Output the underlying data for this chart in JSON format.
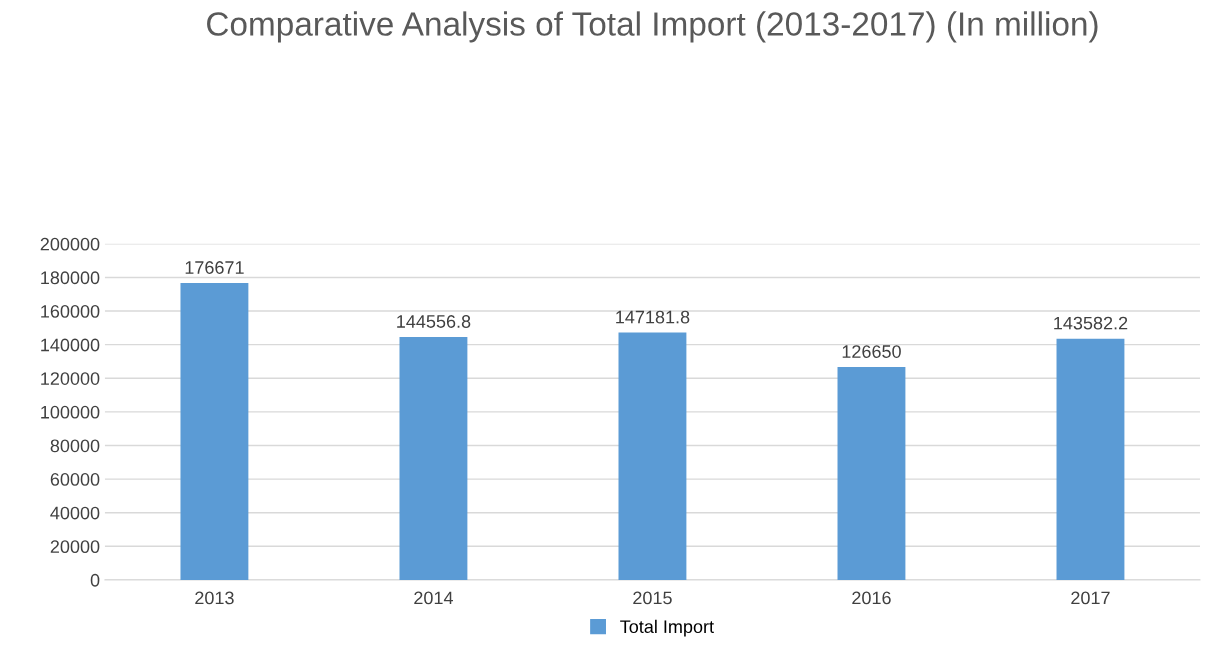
{
  "chart_data": {
    "type": "bar",
    "title": "Comparative Analysis of Total Import (2013-2017) (In million)",
    "categories": [
      "2013",
      "2014",
      "2015",
      "2016",
      "2017"
    ],
    "series": [
      {
        "name": "Total Import",
        "color": "#5b9bd5",
        "values": [
          176671,
          144556.8,
          147181.8,
          126650,
          143582.2
        ]
      }
    ],
    "value_labels": [
      "176671",
      "144556.8",
      "147181.8",
      "126650",
      "143582.2"
    ],
    "ylim": [
      0,
      200000
    ],
    "yticks": [
      0,
      20000,
      40000,
      60000,
      80000,
      100000,
      120000,
      140000,
      160000,
      180000,
      200000
    ],
    "grid": "y",
    "legend": "bottom"
  }
}
